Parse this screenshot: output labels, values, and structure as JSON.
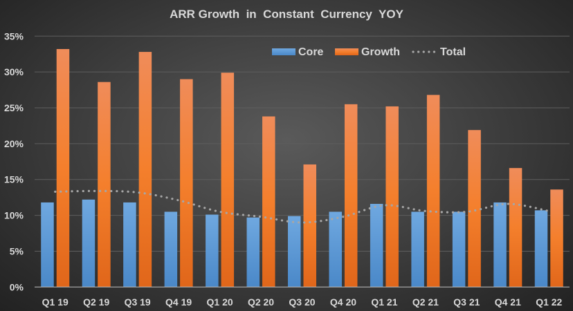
{
  "chart_data": {
    "type": "bar",
    "title": "ARR Growth  in  Constant  Currency  YOY",
    "xlabel": "",
    "ylabel": "",
    "ylim": [
      0,
      35
    ],
    "yticks": [
      "0%",
      "5%",
      "10%",
      "15%",
      "20%",
      "25%",
      "30%",
      "35%"
    ],
    "ytick_values": [
      0,
      5,
      10,
      15,
      20,
      25,
      30,
      35
    ],
    "grid": true,
    "legend_position": "top-right",
    "categories": [
      "Q1 19",
      "Q2 19",
      "Q3 19",
      "Q4 19",
      "Q1 20",
      "Q2 20",
      "Q3 20",
      "Q4 20",
      "Q1 21",
      "Q2 21",
      "Q3 21",
      "Q4 21",
      "Q1 22"
    ],
    "series": [
      {
        "name": "Core",
        "kind": "bar",
        "color": "#5b9bd5",
        "values": [
          11.8,
          12.2,
          11.8,
          10.5,
          10.1,
          9.7,
          9.9,
          10.5,
          11.6,
          10.5,
          10.5,
          11.8,
          10.7
        ]
      },
      {
        "name": "Growth",
        "kind": "bar",
        "color": "#f07e26",
        "values": [
          33.2,
          28.6,
          32.8,
          29.0,
          29.9,
          23.8,
          17.1,
          25.5,
          25.2,
          26.8,
          21.9,
          16.6,
          13.6
        ]
      },
      {
        "name": "Total",
        "kind": "line-dotted",
        "color": "#a6a6a6",
        "values": [
          13.3,
          13.4,
          13.2,
          12.1,
          10.5,
          9.8,
          9.0,
          9.8,
          11.4,
          10.6,
          10.5,
          11.6,
          10.6
        ]
      }
    ]
  }
}
